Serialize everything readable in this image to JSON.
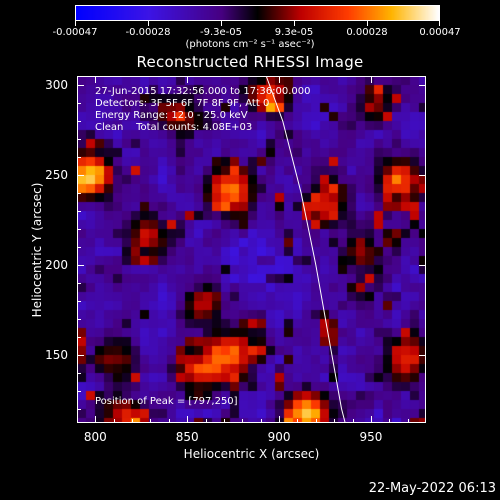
{
  "chart_data": {
    "type": "heatmap",
    "title": "Reconstructed RHESSI Image",
    "xlabel": "Heliocentric X (arcsec)",
    "ylabel": "Heliocentric Y (arcsec)",
    "xlim": [
      790,
      980
    ],
    "ylim": [
      112,
      305
    ],
    "x_ticks": [
      800,
      850,
      900,
      950
    ],
    "y_ticks": [
      150,
      200,
      250,
      300
    ],
    "colorbar": {
      "ticks": [
        "-0.00047",
        "-0.00028",
        "-9.3e-05",
        "9.3e-05",
        "0.00028",
        "0.00047"
      ],
      "units": "(photons cm⁻² s⁻¹ asec⁻²)",
      "range": [
        -0.00047,
        0.00047
      ]
    },
    "info_lines": [
      "27-Jun-2015 17:32:56.000 to 17:36:00.000",
      "Detectors: 3F 5F 6F 7F 8F 9F, Att 0",
      "Energy Range: 12.0 - 25.0 keV",
      "Clean    Total counts: 4.08E+03"
    ],
    "peak_text": "Position of Peak = [797,250]",
    "sources": [
      {
        "x": 797,
        "y": 250,
        "intensity": 1.0
      },
      {
        "x": 875,
        "y": 240,
        "intensity": 0.72
      },
      {
        "x": 965,
        "y": 245,
        "intensity": 0.7
      },
      {
        "x": 925,
        "y": 235,
        "intensity": 0.55
      },
      {
        "x": 895,
        "y": 295,
        "intensity": 0.5
      },
      {
        "x": 875,
        "y": 150,
        "intensity": 0.8
      },
      {
        "x": 855,
        "y": 140,
        "intensity": 0.6
      },
      {
        "x": 915,
        "y": 118,
        "intensity": 0.85
      },
      {
        "x": 815,
        "y": 115,
        "intensity": 0.6
      },
      {
        "x": 970,
        "y": 150,
        "intensity": 0.65
      },
      {
        "x": 810,
        "y": 150,
        "intensity": 0.5
      },
      {
        "x": 830,
        "y": 215,
        "intensity": 0.45
      },
      {
        "x": 860,
        "y": 180,
        "intensity": 0.45
      },
      {
        "x": 945,
        "y": 205,
        "intensity": 0.4
      },
      {
        "x": 845,
        "y": 285,
        "intensity": 0.45
      },
      {
        "x": 950,
        "y": 290,
        "intensity": 0.35
      }
    ],
    "limb": [
      [
        893,
        305
      ],
      [
        902,
        280
      ],
      [
        912,
        240
      ],
      [
        920,
        200
      ],
      [
        927,
        160
      ],
      [
        934,
        120
      ],
      [
        936,
        112
      ]
    ]
  },
  "timestamp": "22-May-2022 06:13"
}
